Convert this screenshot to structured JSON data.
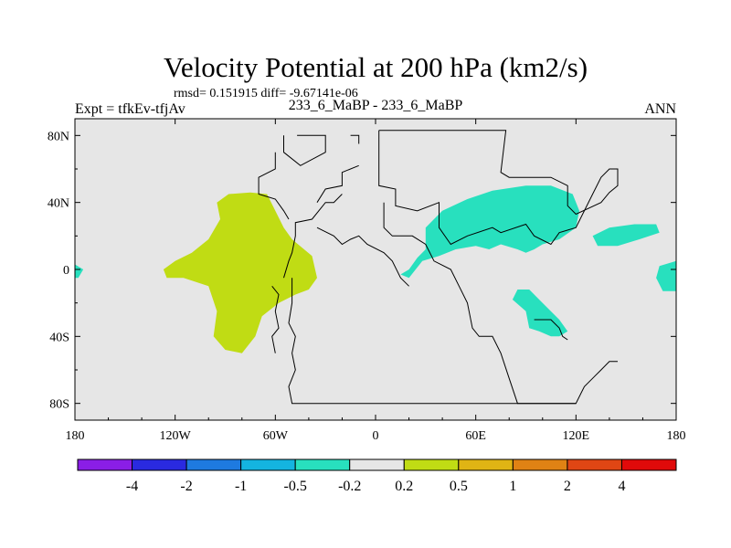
{
  "chart_data": {
    "type": "heatmap",
    "title": "Velocity Potential at 200 hPa (km2/s)",
    "stats_line": "rmsd= 0.151915 diff= -9.67141e-06",
    "left_label": "Expt = tfkEv-tfjAv",
    "center_label": "233_6_MaBP - 233_6_MaBP",
    "right_label": "ANN",
    "x_range": [
      -180,
      180
    ],
    "y_range": [
      -90,
      90
    ],
    "x_ticks": [
      {
        "value": -180,
        "label": "180"
      },
      {
        "value": -120,
        "label": "120W"
      },
      {
        "value": -60,
        "label": "60W"
      },
      {
        "value": 0,
        "label": "0"
      },
      {
        "value": 60,
        "label": "60E"
      },
      {
        "value": 120,
        "label": "120E"
      },
      {
        "value": 180,
        "label": "180"
      }
    ],
    "y_ticks": [
      {
        "value": 80,
        "label": "80N"
      },
      {
        "value": 40,
        "label": "40N"
      },
      {
        "value": 0,
        "label": "0"
      },
      {
        "value": -40,
        "label": "40S"
      },
      {
        "value": -80,
        "label": "80S"
      }
    ],
    "colorbar": {
      "colors": [
        "#8a1ee6",
        "#2a2ae0",
        "#1e7ae0",
        "#14b4e0",
        "#28e0be",
        "#e6e6e6",
        "#c0dc14",
        "#e0b414",
        "#e08214",
        "#e04614",
        "#e00a0a"
      ],
      "labels": [
        "-4",
        "-2",
        "-1",
        "-0.5",
        "-0.2",
        "0.2",
        "0.5",
        "1",
        "2",
        "4"
      ]
    },
    "regions": [
      {
        "name": "positive-anomaly-atlantic",
        "level": "0.2 to 0.5",
        "color": "#c0dc14",
        "points": [
          [
            -125,
            -5
          ],
          [
            -115,
            -5
          ],
          [
            -100,
            -10
          ],
          [
            -95,
            -25
          ],
          [
            -97,
            -40
          ],
          [
            -90,
            -48
          ],
          [
            -80,
            -50
          ],
          [
            -72,
            -40
          ],
          [
            -68,
            -28
          ],
          [
            -58,
            -20
          ],
          [
            -48,
            -15
          ],
          [
            -40,
            -12
          ],
          [
            -35,
            -5
          ],
          [
            -38,
            8
          ],
          [
            -50,
            18
          ],
          [
            -55,
            25
          ],
          [
            -60,
            35
          ],
          [
            -65,
            45
          ],
          [
            -75,
            46
          ],
          [
            -88,
            45
          ],
          [
            -95,
            40
          ],
          [
            -93,
            30
          ],
          [
            -100,
            18
          ],
          [
            -110,
            10
          ],
          [
            -120,
            5
          ],
          [
            -127,
            0
          ]
        ]
      },
      {
        "name": "negative-anomaly-asia",
        "level": "-0.5 to -0.2",
        "color": "#28e0be",
        "points": [
          [
            20,
            0
          ],
          [
            25,
            7
          ],
          [
            30,
            12
          ],
          [
            30,
            25
          ],
          [
            40,
            35
          ],
          [
            55,
            42
          ],
          [
            70,
            47
          ],
          [
            90,
            50
          ],
          [
            105,
            50
          ],
          [
            118,
            45
          ],
          [
            122,
            35
          ],
          [
            120,
            25
          ],
          [
            110,
            18
          ],
          [
            100,
            15
          ],
          [
            95,
            12
          ],
          [
            90,
            10
          ],
          [
            85,
            12
          ],
          [
            75,
            15
          ],
          [
            68,
            12
          ],
          [
            60,
            14
          ],
          [
            48,
            12
          ],
          [
            38,
            8
          ],
          [
            28,
            5
          ],
          [
            20,
            -5
          ],
          [
            15,
            -3
          ]
        ]
      },
      {
        "name": "negative-anomaly-indian-ocean",
        "level": "-0.5 to -0.2",
        "color": "#28e0be",
        "points": [
          [
            85,
            -12
          ],
          [
            92,
            -12
          ],
          [
            100,
            -20
          ],
          [
            110,
            -30
          ],
          [
            115,
            -37
          ],
          [
            110,
            -40
          ],
          [
            105,
            -40
          ],
          [
            98,
            -37
          ],
          [
            92,
            -35
          ],
          [
            90,
            -25
          ],
          [
            82,
            -18
          ]
        ]
      },
      {
        "name": "negative-anomaly-west-pacific",
        "level": "-0.5 to -0.2",
        "color": "#28e0be",
        "points": [
          [
            130,
            20
          ],
          [
            140,
            25
          ],
          [
            155,
            27
          ],
          [
            168,
            27
          ],
          [
            170,
            22
          ],
          [
            158,
            18
          ],
          [
            145,
            14
          ],
          [
            133,
            14
          ]
        ]
      },
      {
        "name": "negative-anomaly-dateline",
        "level": "-0.5 to -0.2",
        "color": "#28e0be",
        "points": [
          [
            170,
            2
          ],
          [
            180,
            5
          ],
          [
            180,
            -13
          ],
          [
            172,
            -13
          ],
          [
            168,
            -5
          ]
        ]
      },
      {
        "name": "negative-anomaly-edge-west",
        "level": "-0.5 to -0.2",
        "color": "#28e0be",
        "points": [
          [
            -180,
            3
          ],
          [
            -175,
            0
          ],
          [
            -178,
            -5
          ],
          [
            -180,
            -5
          ]
        ]
      }
    ],
    "coastlines": [
      [
        [
          -47,
          80
        ],
        [
          -30,
          80
        ],
        [
          -30,
          70
        ],
        [
          -45,
          62
        ],
        [
          -55,
          70
        ],
        [
          -55,
          80
        ]
      ],
      [
        [
          -15,
          80
        ],
        [
          -10,
          80
        ],
        [
          -10,
          75
        ]
      ],
      [
        [
          -60,
          70
        ],
        [
          -60,
          60
        ],
        [
          -70,
          55
        ],
        [
          -70,
          45
        ],
        [
          -60,
          42
        ],
        [
          -55,
          35
        ],
        [
          -52,
          30
        ]
      ],
      [
        [
          -35,
          40
        ],
        [
          -30,
          48
        ],
        [
          -20,
          50
        ],
        [
          -20,
          58
        ],
        [
          -10,
          62
        ]
      ],
      [
        [
          2,
          83
        ],
        [
          2,
          50
        ],
        [
          12,
          48
        ],
        [
          12,
          38
        ],
        [
          25,
          35
        ],
        [
          38,
          40
        ],
        [
          38,
          25
        ],
        [
          45,
          15
        ],
        [
          55,
          20
        ],
        [
          70,
          25
        ],
        [
          75,
          22
        ],
        [
          90,
          27
        ],
        [
          95,
          20
        ],
        [
          105,
          15
        ],
        [
          110,
          22
        ],
        [
          120,
          25
        ],
        [
          130,
          45
        ],
        [
          135,
          55
        ],
        [
          140,
          60
        ],
        [
          145,
          60
        ],
        [
          145,
          50
        ],
        [
          140,
          46
        ],
        [
          135,
          40
        ],
        [
          120,
          33
        ],
        [
          115,
          38
        ],
        [
          115,
          50
        ],
        [
          105,
          55
        ],
        [
          80,
          55
        ],
        [
          75,
          58
        ],
        [
          78,
          83
        ],
        [
          2,
          83
        ]
      ],
      [
        [
          5,
          40
        ],
        [
          5,
          25
        ],
        [
          10,
          20
        ],
        [
          22,
          20
        ],
        [
          30,
          15
        ],
        [
          35,
          5
        ],
        [
          45,
          0
        ],
        [
          50,
          -10
        ],
        [
          55,
          -20
        ],
        [
          58,
          -35
        ],
        [
          62,
          -40
        ],
        [
          70,
          -40
        ],
        [
          75,
          -50
        ],
        [
          80,
          -65
        ],
        [
          85,
          -80
        ],
        [
          120,
          -80
        ],
        [
          125,
          -70
        ],
        [
          130,
          -65
        ],
        [
          135,
          -60
        ],
        [
          140,
          -55
        ],
        [
          145,
          -55
        ]
      ],
      [
        [
          -55,
          -5
        ],
        [
          -52,
          5
        ],
        [
          -50,
          10
        ],
        [
          -48,
          20
        ],
        [
          -48,
          28
        ],
        [
          -38,
          30
        ],
        [
          -30,
          40
        ],
        [
          -25,
          40
        ],
        [
          -20,
          45
        ]
      ],
      [
        [
          -50,
          -5
        ],
        [
          -50,
          -20
        ],
        [
          -52,
          -32
        ],
        [
          -48,
          -40
        ],
        [
          -50,
          -50
        ],
        [
          -48,
          -60
        ],
        [
          -52,
          -70
        ],
        [
          -50,
          -80
        ],
        [
          120,
          -80
        ]
      ],
      [
        [
          95,
          -30
        ],
        [
          105,
          -30
        ],
        [
          110,
          -35
        ],
        [
          112,
          -40
        ],
        [
          115,
          -42
        ]
      ],
      [
        [
          -35,
          25
        ],
        [
          -25,
          20
        ],
        [
          -20,
          15
        ],
        [
          -15,
          18
        ],
        [
          -10,
          20
        ],
        [
          -5,
          15
        ],
        [
          5,
          10
        ],
        [
          10,
          5
        ],
        [
          15,
          -5
        ],
        [
          20,
          -10
        ]
      ],
      [
        [
          -62,
          -10
        ],
        [
          -58,
          -15
        ],
        [
          -60,
          -25
        ],
        [
          -58,
          -35
        ],
        [
          -62,
          -40
        ],
        [
          -60,
          -50
        ]
      ]
    ]
  }
}
